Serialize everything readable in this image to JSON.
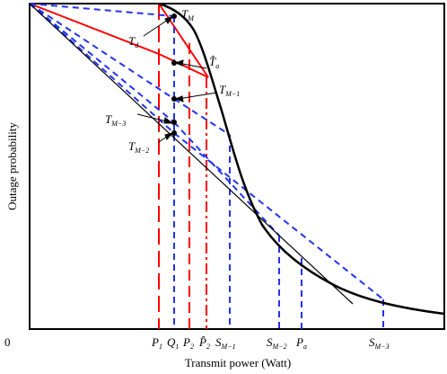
{
  "axes": {
    "xlabel": "Transmit power (Watt)",
    "ylabel": "Outage probability",
    "origin": "0"
  },
  "point_labels": {
    "TM": {
      "main": "T",
      "sub": "M"
    },
    "Td": {
      "main": "T",
      "sub": "d"
    },
    "Tahat": {
      "main": "T̂",
      "sub": "a"
    },
    "TM1": {
      "main": "T",
      "sub": "M−1"
    },
    "TM3": {
      "main": "T",
      "sub": "M−3"
    },
    "TM2": {
      "main": "T",
      "sub": "M−2"
    }
  },
  "x_markers": {
    "P1": {
      "main": "P",
      "sub": "1"
    },
    "Q1": {
      "main": "Q",
      "sub": "1"
    },
    "P2": {
      "main": "P",
      "sub": "2"
    },
    "P2hat": {
      "main": "P̂",
      "sub": "2"
    },
    "SM1": {
      "main": "S",
      "sub": "M−1"
    },
    "SM2": {
      "main": "S",
      "sub": "M−2"
    },
    "Pa": {
      "main": "P",
      "sub": "a"
    },
    "SM3": {
      "main": "S",
      "sub": "M−3"
    }
  },
  "colors": {
    "curve": "#000000",
    "red": "#ff0000",
    "blue": "#2233ee"
  }
}
